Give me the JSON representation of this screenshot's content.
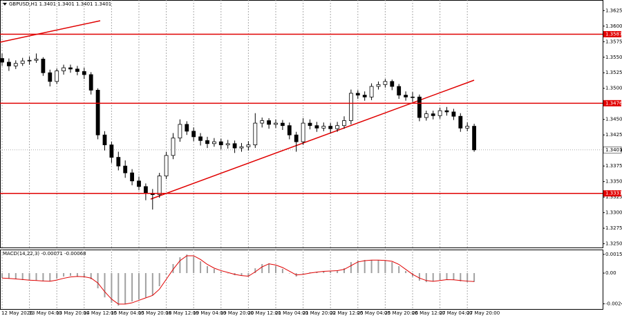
{
  "chart_data": [
    {
      "type": "candlestick",
      "title": "GBPUSD,H1  1.3401 1.3401 1.3401 1.3401",
      "ylim": [
        1.3244,
        1.3642
      ],
      "yticks": [
        1.3625,
        {
          "value": 1.36,
          "label": "1.3600"
        },
        1.3575,
        {
          "value": 1.355,
          "label": "1.3550"
        },
        1.3525,
        {
          "value": 1.35,
          "label": "1.3500"
        },
        {
          "value": 1.345,
          "label": "1.3450"
        },
        1.3425,
        {
          "value": 1.34,
          "label": "1.3400"
        },
        1.3375,
        {
          "value": 1.335,
          "label": "1.3350"
        },
        1.3325,
        {
          "value": 1.33,
          "label": "1.3300"
        },
        1.3275,
        {
          "value": 1.325,
          "label": "1.3250"
        }
      ],
      "levels": [
        {
          "value": 1.3587,
          "color": "#e00000"
        },
        {
          "value": 1.3476,
          "color": "#e00000"
        },
        {
          "value": 1.3331,
          "color": "#e00000"
        }
      ],
      "last": 1.3401,
      "up_color": "#ffffff",
      "down_color": "#000000",
      "x_labels": [
        "12 May 2026",
        "13 May 04:00",
        "13 May 20:00",
        "14 May 12:00",
        "15 May 04:00",
        "15 May 20:00",
        "18 May 12:00",
        "19 May 04:00",
        "19 May 20:00",
        "20 May 12:00",
        "21 May 04:00",
        "21 May 20:00",
        "22 May 12:00",
        "25 May 04:00",
        "25 May 20:00",
        "26 May 12:00",
        "27 May 04:00",
        "27 May 20:00"
      ],
      "grid": true,
      "candles": [
        [
          1.3548,
          1.3556,
          1.3536,
          1.3542
        ],
        [
          1.3542,
          1.3548,
          1.3528,
          1.3536
        ],
        [
          1.3536,
          1.3545,
          1.3531,
          1.354
        ],
        [
          1.354,
          1.3549,
          1.3536,
          1.3544
        ],
        [
          1.3544,
          1.3551,
          1.3538,
          1.3545
        ],
        [
          1.3545,
          1.3556,
          1.3541,
          1.3547
        ],
        [
          1.3547,
          1.355,
          1.352,
          1.3525
        ],
        [
          1.3525,
          1.353,
          1.3503,
          1.3511
        ],
        [
          1.3511,
          1.3532,
          1.3507,
          1.3528
        ],
        [
          1.3528,
          1.3538,
          1.3522,
          1.3533
        ],
        [
          1.3533,
          1.3538,
          1.3525,
          1.3531
        ],
        [
          1.3531,
          1.3536,
          1.3521,
          1.3527
        ],
        [
          1.3527,
          1.3533,
          1.3515,
          1.3522
        ],
        [
          1.3522,
          1.3526,
          1.349,
          1.3497
        ],
        [
          1.3497,
          1.35,
          1.3418,
          1.3425
        ],
        [
          1.3425,
          1.3431,
          1.34,
          1.3409
        ],
        [
          1.3409,
          1.3414,
          1.338,
          1.3389
        ],
        [
          1.3389,
          1.3398,
          1.3368,
          1.3375
        ],
        [
          1.3375,
          1.3384,
          1.3356,
          1.3364
        ],
        [
          1.3364,
          1.337,
          1.3344,
          1.3351
        ],
        [
          1.3351,
          1.3358,
          1.3336,
          1.3342
        ],
        [
          1.3342,
          1.3347,
          1.332,
          1.3331
        ],
        [
          1.3331,
          1.3338,
          1.3305,
          1.3329
        ],
        [
          1.3329,
          1.3364,
          1.3324,
          1.3359
        ],
        [
          1.3359,
          1.3398,
          1.3354,
          1.3392
        ],
        [
          1.3392,
          1.3428,
          1.3386,
          1.342
        ],
        [
          1.342,
          1.345,
          1.3414,
          1.3442
        ],
        [
          1.3442,
          1.3447,
          1.3425,
          1.3431
        ],
        [
          1.3431,
          1.3437,
          1.3415,
          1.3422
        ],
        [
          1.3422,
          1.3428,
          1.3408,
          1.3416
        ],
        [
          1.3416,
          1.3422,
          1.3404,
          1.3411
        ],
        [
          1.3411,
          1.342,
          1.3406,
          1.3414
        ],
        [
          1.3414,
          1.3419,
          1.3402,
          1.3409
        ],
        [
          1.3409,
          1.3417,
          1.3403,
          1.3411
        ],
        [
          1.3411,
          1.3416,
          1.3396,
          1.3404
        ],
        [
          1.3404,
          1.3412,
          1.3398,
          1.3406
        ],
        [
          1.3406,
          1.3415,
          1.34,
          1.3409
        ],
        [
          1.3409,
          1.346,
          1.3404,
          1.3444
        ],
        [
          1.3444,
          1.3453,
          1.3437,
          1.3448
        ],
        [
          1.3448,
          1.3452,
          1.3435,
          1.3442
        ],
        [
          1.3442,
          1.345,
          1.3436,
          1.3444
        ],
        [
          1.3444,
          1.3449,
          1.3433,
          1.344
        ],
        [
          1.344,
          1.3445,
          1.3418,
          1.3425
        ],
        [
          1.3425,
          1.343,
          1.3398,
          1.3414
        ],
        [
          1.3414,
          1.3452,
          1.3409,
          1.3444
        ],
        [
          1.3444,
          1.345,
          1.3434,
          1.344
        ],
        [
          1.344,
          1.3446,
          1.343,
          1.3436
        ],
        [
          1.3436,
          1.3445,
          1.3431,
          1.3439
        ],
        [
          1.3439,
          1.3444,
          1.3428,
          1.3435
        ],
        [
          1.3435,
          1.3446,
          1.343,
          1.344
        ],
        [
          1.344,
          1.3455,
          1.3435,
          1.3448
        ],
        [
          1.3448,
          1.3498,
          1.3442,
          1.3492
        ],
        [
          1.3492,
          1.3497,
          1.3483,
          1.3489
        ],
        [
          1.3489,
          1.3495,
          1.348,
          1.3486
        ],
        [
          1.3486,
          1.3508,
          1.3481,
          1.3503
        ],
        [
          1.3503,
          1.3511,
          1.3498,
          1.3506
        ],
        [
          1.3506,
          1.3515,
          1.3501,
          1.3511
        ],
        [
          1.3511,
          1.3514,
          1.3497,
          1.3503
        ],
        [
          1.3503,
          1.3507,
          1.3483,
          1.3489
        ],
        [
          1.3489,
          1.3495,
          1.348,
          1.3486
        ],
        [
          1.3486,
          1.3494,
          1.3478,
          1.3486
        ],
        [
          1.3486,
          1.349,
          1.3447,
          1.3453
        ],
        [
          1.3453,
          1.3464,
          1.3448,
          1.3459
        ],
        [
          1.3459,
          1.3464,
          1.345,
          1.3456
        ],
        [
          1.3456,
          1.3469,
          1.3451,
          1.3464
        ],
        [
          1.3464,
          1.347,
          1.3456,
          1.3462
        ],
        [
          1.3462,
          1.3467,
          1.3449,
          1.3455
        ],
        [
          1.3455,
          1.346,
          1.343,
          1.3436
        ],
        [
          1.3436,
          1.3445,
          1.3431,
          1.3439
        ],
        [
          1.3439,
          1.3443,
          1.3398,
          1.3401
        ]
      ]
    },
    {
      "type": "macd",
      "title": "MACD(14,22,3) -0.00071 -0.00068",
      "ylim": [
        -0.0029,
        0.0019
      ],
      "yticks": [
        0.00151,
        {
          "value": 0,
          "label": "0.00"
        },
        -0.00248
      ],
      "series": [
        {
          "kind": "histogram",
          "color": "#a0a0a0",
          "values": [
            -0.0004,
            -0.00045,
            -0.0005,
            -0.00056,
            -0.00061,
            -0.00061,
            -0.00067,
            -0.00067,
            -0.00045,
            -0.00028,
            -0.00022,
            -0.00028,
            -0.00034,
            -0.0005,
            -0.00123,
            -0.00196,
            -0.0024,
            -0.00263,
            -0.00251,
            -0.00229,
            -0.00212,
            -0.00196,
            -0.00179,
            -0.00106,
            -0.00011,
            0.00073,
            0.00128,
            0.0015,
            0.00134,
            0.00095,
            0.00056,
            0.00034,
            0.00011,
            0,
            -0.00017,
            -0.00022,
            -0.00028,
            0.00039,
            0.00073,
            0.00078,
            0.00056,
            0.00034,
            0,
            -0.00028,
            -6e-05,
            6e-05,
            0.00011,
            0.00017,
            0.00017,
            0.00022,
            0.00039,
            0.00089,
            0.001,
            0.00106,
            0.00106,
            0.00106,
            0.001,
            0.00089,
            0.00056,
            0.00017,
            -0.00028,
            -0.00061,
            -0.00073,
            -0.00067,
            -0.00056,
            -0.0005,
            -0.00056,
            -0.00067,
            -0.00073,
            -0.00071
          ]
        },
        {
          "kind": "line",
          "color": "#e00000",
          "values": [
            -0.0004,
            -0.00043,
            -0.00047,
            -0.00052,
            -0.00057,
            -0.0006,
            -0.00064,
            -0.00066,
            -0.00056,
            -0.00042,
            -0.00031,
            -0.00027,
            -0.0003,
            -0.0004,
            -0.0008,
            -0.0015,
            -0.0021,
            -0.0025,
            -0.0025,
            -0.0024,
            -0.0022,
            -0.002,
            -0.0018,
            -0.0013,
            -0.0005,
            0.0003,
            0.001,
            0.0014,
            0.0014,
            0.0011,
            0.0007,
            0.0004,
            0.0002,
            5e-05,
            -0.0001,
            -0.0002,
            -0.00025,
            0.0001,
            0.0005,
            0.00075,
            0.00065,
            0.00045,
            0.00015,
            -0.00015,
            -0.0001,
            0,
            8e-05,
            0.00014,
            0.00017,
            0.0002,
            0.0003,
            0.0006,
            0.0009,
            0.001,
            0.00105,
            0.00105,
            0.00102,
            0.00095,
            0.0007,
            0.0003,
            -0.0001,
            -0.0004,
            -0.0006,
            -0.00067,
            -0.0006,
            -0.00053,
            -0.00054,
            -0.0006,
            -0.00065,
            -0.00068
          ]
        }
      ]
    }
  ]
}
